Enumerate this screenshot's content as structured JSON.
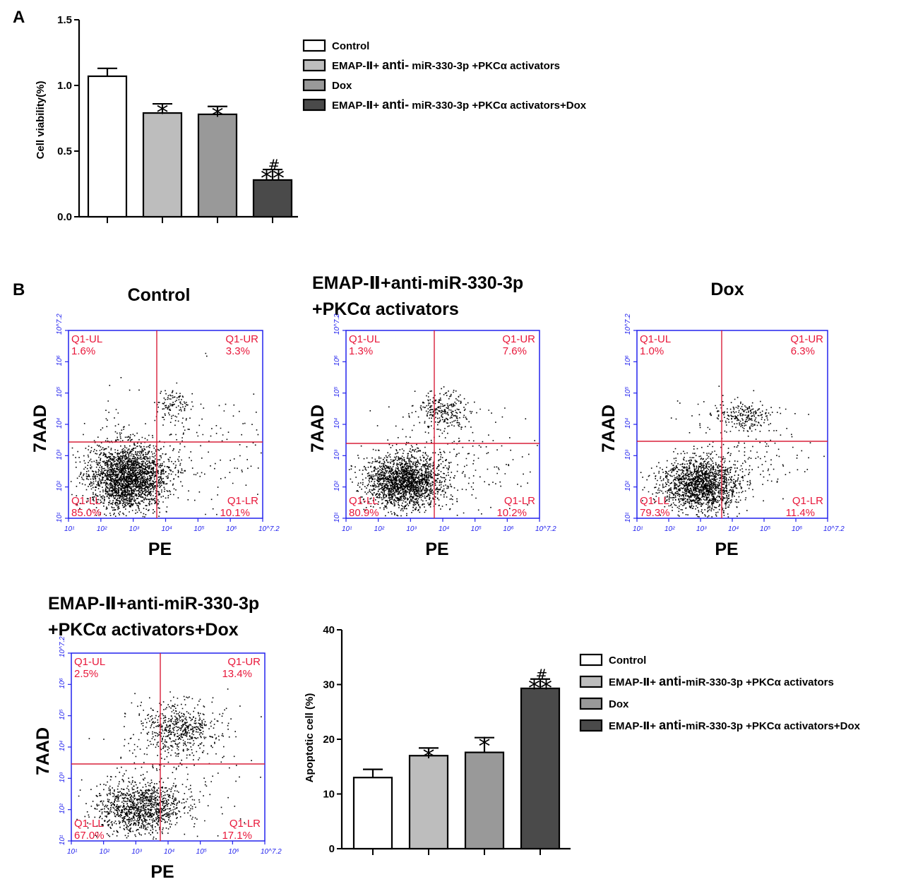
{
  "panel_a": {
    "letter": "A",
    "chart_data": {
      "type": "bar",
      "categories": [
        "Control",
        "EMAP-II + anti-miR-330-3p +PKCα activators",
        "Dox",
        "EMAP-II + anti-miR-330-3p +PKCα activators+Dox"
      ],
      "values": [
        1.07,
        0.79,
        0.78,
        0.28
      ],
      "errors": [
        0.06,
        0.07,
        0.06,
        0.08
      ],
      "colors": [
        "#ffffff",
        "#bdbdbd",
        "#999999",
        "#4a4a4a"
      ],
      "significance": [
        {
          "stars": "",
          "hash": ""
        },
        {
          "stars": "*",
          "hash": ""
        },
        {
          "stars": "*",
          "hash": ""
        },
        {
          "stars": "**",
          "hash": "#"
        }
      ],
      "ylabel": "Cell viability(%)",
      "ylim": [
        0,
        1.5
      ],
      "yticks": [
        "0.0",
        "0.5",
        "1.0",
        "1.5"
      ],
      "ytick_values": [
        0,
        0.5,
        1.0,
        1.5
      ],
      "legend": [
        {
          "prefix": "Control",
          "mid": "",
          "suffix": ""
        },
        {
          "prefix": "EMAP-Ⅱ+ ",
          "mid": "anti-",
          "suffix": " miR-330-3p +PKCα activators"
        },
        {
          "prefix": "Dox",
          "mid": "",
          "suffix": ""
        },
        {
          "prefix": "EMAP-Ⅱ+ ",
          "mid": "anti-",
          "suffix": " miR-330-3p +PKCα activators+Dox"
        }
      ]
    }
  },
  "panel_b": {
    "letter": "B",
    "flow_plots": [
      {
        "title1": "Control",
        "title2": "",
        "UL": "1.6%",
        "UR": "3.3%",
        "LL": "85.0%",
        "LR": "10.1%"
      },
      {
        "title1": "EMAP-Ⅱ+anti-miR-330-3p",
        "title2": "+PKCα activators",
        "UL": "1.3%",
        "UR": "7.6%",
        "LL": "80.9%",
        "LR": "10.2%"
      },
      {
        "title1": "Dox",
        "title2": "",
        "UL": "1.0%",
        "UR": "6.3%",
        "LL": "79.3%",
        "LR": "11.4%"
      },
      {
        "title1": "EMAP-Ⅱ+anti-miR-330-3p",
        "title2": "+PKCα activators+Dox",
        "UL": "2.5%",
        "UR": "13.4%",
        "LL": "67.0%",
        "LR": "17.1%"
      }
    ],
    "quadrant_names": {
      "UL": "Q1-UL",
      "UR": "Q1-UR",
      "LL": "Q1-LL",
      "LR": "Q1-LR"
    },
    "xlabel": "PE",
    "ylabel": "7AAD",
    "log_ticks": [
      "10¹",
      "10²",
      "10³",
      "10⁴",
      "10⁵",
      "10⁶",
      "10^7.2"
    ],
    "chart_data": {
      "type": "bar",
      "categories": [
        "Control",
        "EMAP-II + anti-miR-330-3p +PKCα activators",
        "Dox",
        "EMAP-II + anti-miR-330-3p +PKCα activators+Dox"
      ],
      "values": [
        13.0,
        17.0,
        17.6,
        29.3
      ],
      "errors": [
        1.5,
        1.4,
        2.7,
        1.7
      ],
      "colors": [
        "#ffffff",
        "#bdbdbd",
        "#999999",
        "#4a4a4a"
      ],
      "significance": [
        {
          "stars": "",
          "hash": ""
        },
        {
          "stars": "*",
          "hash": ""
        },
        {
          "stars": "*",
          "hash": ""
        },
        {
          "stars": "**",
          "hash": "#"
        }
      ],
      "ylabel": "Apoptotic cell (%)",
      "ylim": [
        0,
        40
      ],
      "yticks": [
        "0",
        "10",
        "20",
        "30",
        "40"
      ],
      "ytick_values": [
        0,
        10,
        20,
        30,
        40
      ],
      "legend": [
        {
          "prefix": "Control",
          "mid": "",
          "suffix": ""
        },
        {
          "prefix": "EMAP-Ⅱ+ ",
          "mid": "anti-",
          "suffix": "miR-330-3p +PKCα activators"
        },
        {
          "prefix": "Dox",
          "mid": "",
          "suffix": ""
        },
        {
          "prefix": "EMAP-Ⅱ+ ",
          "mid": "anti-",
          "suffix": "miR-330-3p +PKCα activators+Dox"
        }
      ]
    }
  }
}
